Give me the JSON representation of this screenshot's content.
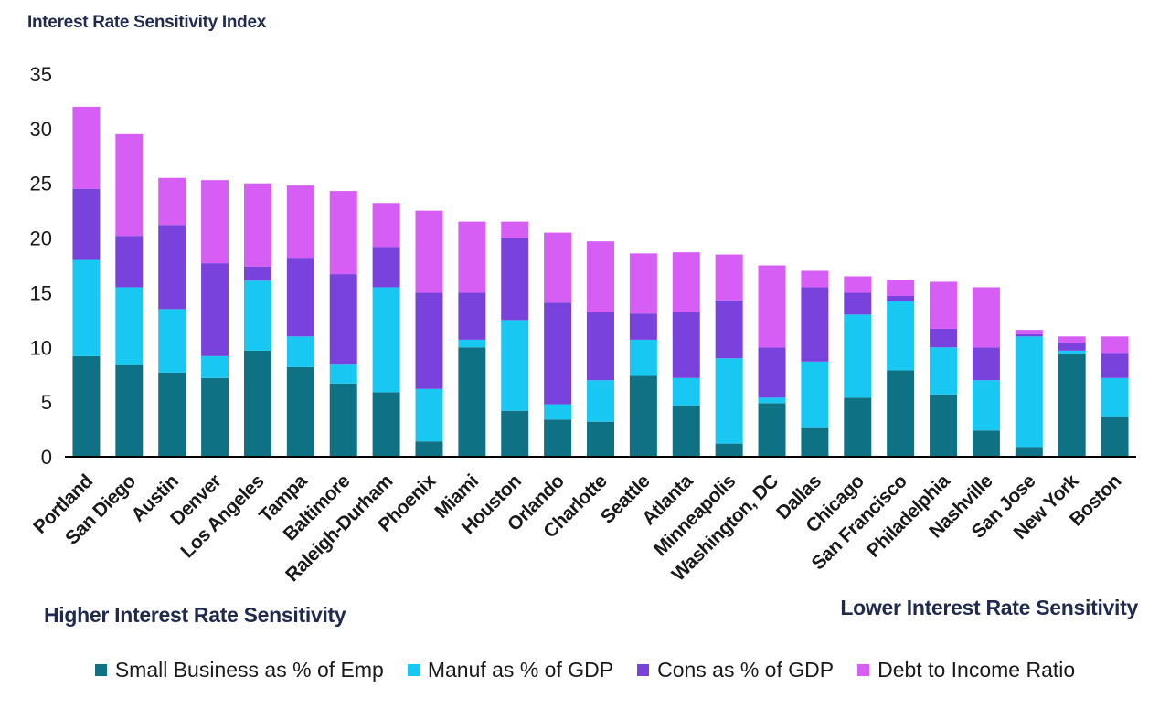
{
  "chart_data": {
    "type": "bar",
    "stacked": true,
    "ylabel": "Interest Rate Sensitivity Index",
    "ylim": [
      0,
      35
    ],
    "yticks": [
      0,
      5,
      10,
      15,
      20,
      25,
      30,
      35
    ],
    "grid": false,
    "legend_position": "bottom",
    "categories": [
      "Portland",
      "San Diego",
      "Austin",
      "Denver",
      "Los Angeles",
      "Tampa",
      "Baltimore",
      "Raleigh-Durham",
      "Phoenix",
      "Miami",
      "Houston",
      "Orlando",
      "Charlotte",
      "Seattle",
      "Atlanta",
      "Minneapolis",
      "Washington, DC",
      "Dallas",
      "Chicago",
      "San Francisco",
      "Philadelphia",
      "Nashville",
      "San Jose",
      "New York",
      "Boston"
    ],
    "series": [
      {
        "name": "Small Business as % of Emp",
        "color": "#0f7184",
        "values": [
          9.2,
          8.4,
          7.7,
          7.2,
          9.7,
          8.2,
          6.7,
          5.9,
          1.4,
          10.0,
          4.2,
          3.4,
          3.2,
          7.4,
          4.7,
          1.2,
          4.9,
          2.7,
          5.4,
          7.9,
          5.7,
          2.4,
          0.9,
          9.4,
          3.7
        ]
      },
      {
        "name": "Manuf as % of GDP",
        "color": "#19c8f2",
        "values": [
          8.8,
          7.1,
          5.8,
          2.0,
          6.4,
          2.8,
          1.8,
          9.6,
          4.8,
          0.7,
          8.3,
          1.4,
          3.8,
          3.3,
          2.5,
          7.8,
          0.5,
          6.0,
          7.6,
          6.3,
          4.3,
          4.6,
          10.1,
          0.3,
          3.5
        ]
      },
      {
        "name": "Cons as % of GDP",
        "color": "#7a42dd",
        "values": [
          6.5,
          4.7,
          7.7,
          8.5,
          1.3,
          7.2,
          8.2,
          3.7,
          8.8,
          4.3,
          7.5,
          9.3,
          6.2,
          2.4,
          6.0,
          5.3,
          4.6,
          6.8,
          2.0,
          0.5,
          1.7,
          3.0,
          0.2,
          0.7,
          2.3
        ]
      },
      {
        "name": "Debt to Income Ratio",
        "color": "#d75ef4",
        "values": [
          7.5,
          9.3,
          4.3,
          7.6,
          7.6,
          6.6,
          7.6,
          4.0,
          7.5,
          6.5,
          1.5,
          6.4,
          6.5,
          5.5,
          5.5,
          4.2,
          7.5,
          1.5,
          1.5,
          1.5,
          4.3,
          5.5,
          0.4,
          0.6,
          1.5
        ]
      }
    ]
  },
  "annotations": {
    "left": "Higher Interest Rate Sensitivity",
    "right": "Lower Interest Rate Sensitivity"
  }
}
